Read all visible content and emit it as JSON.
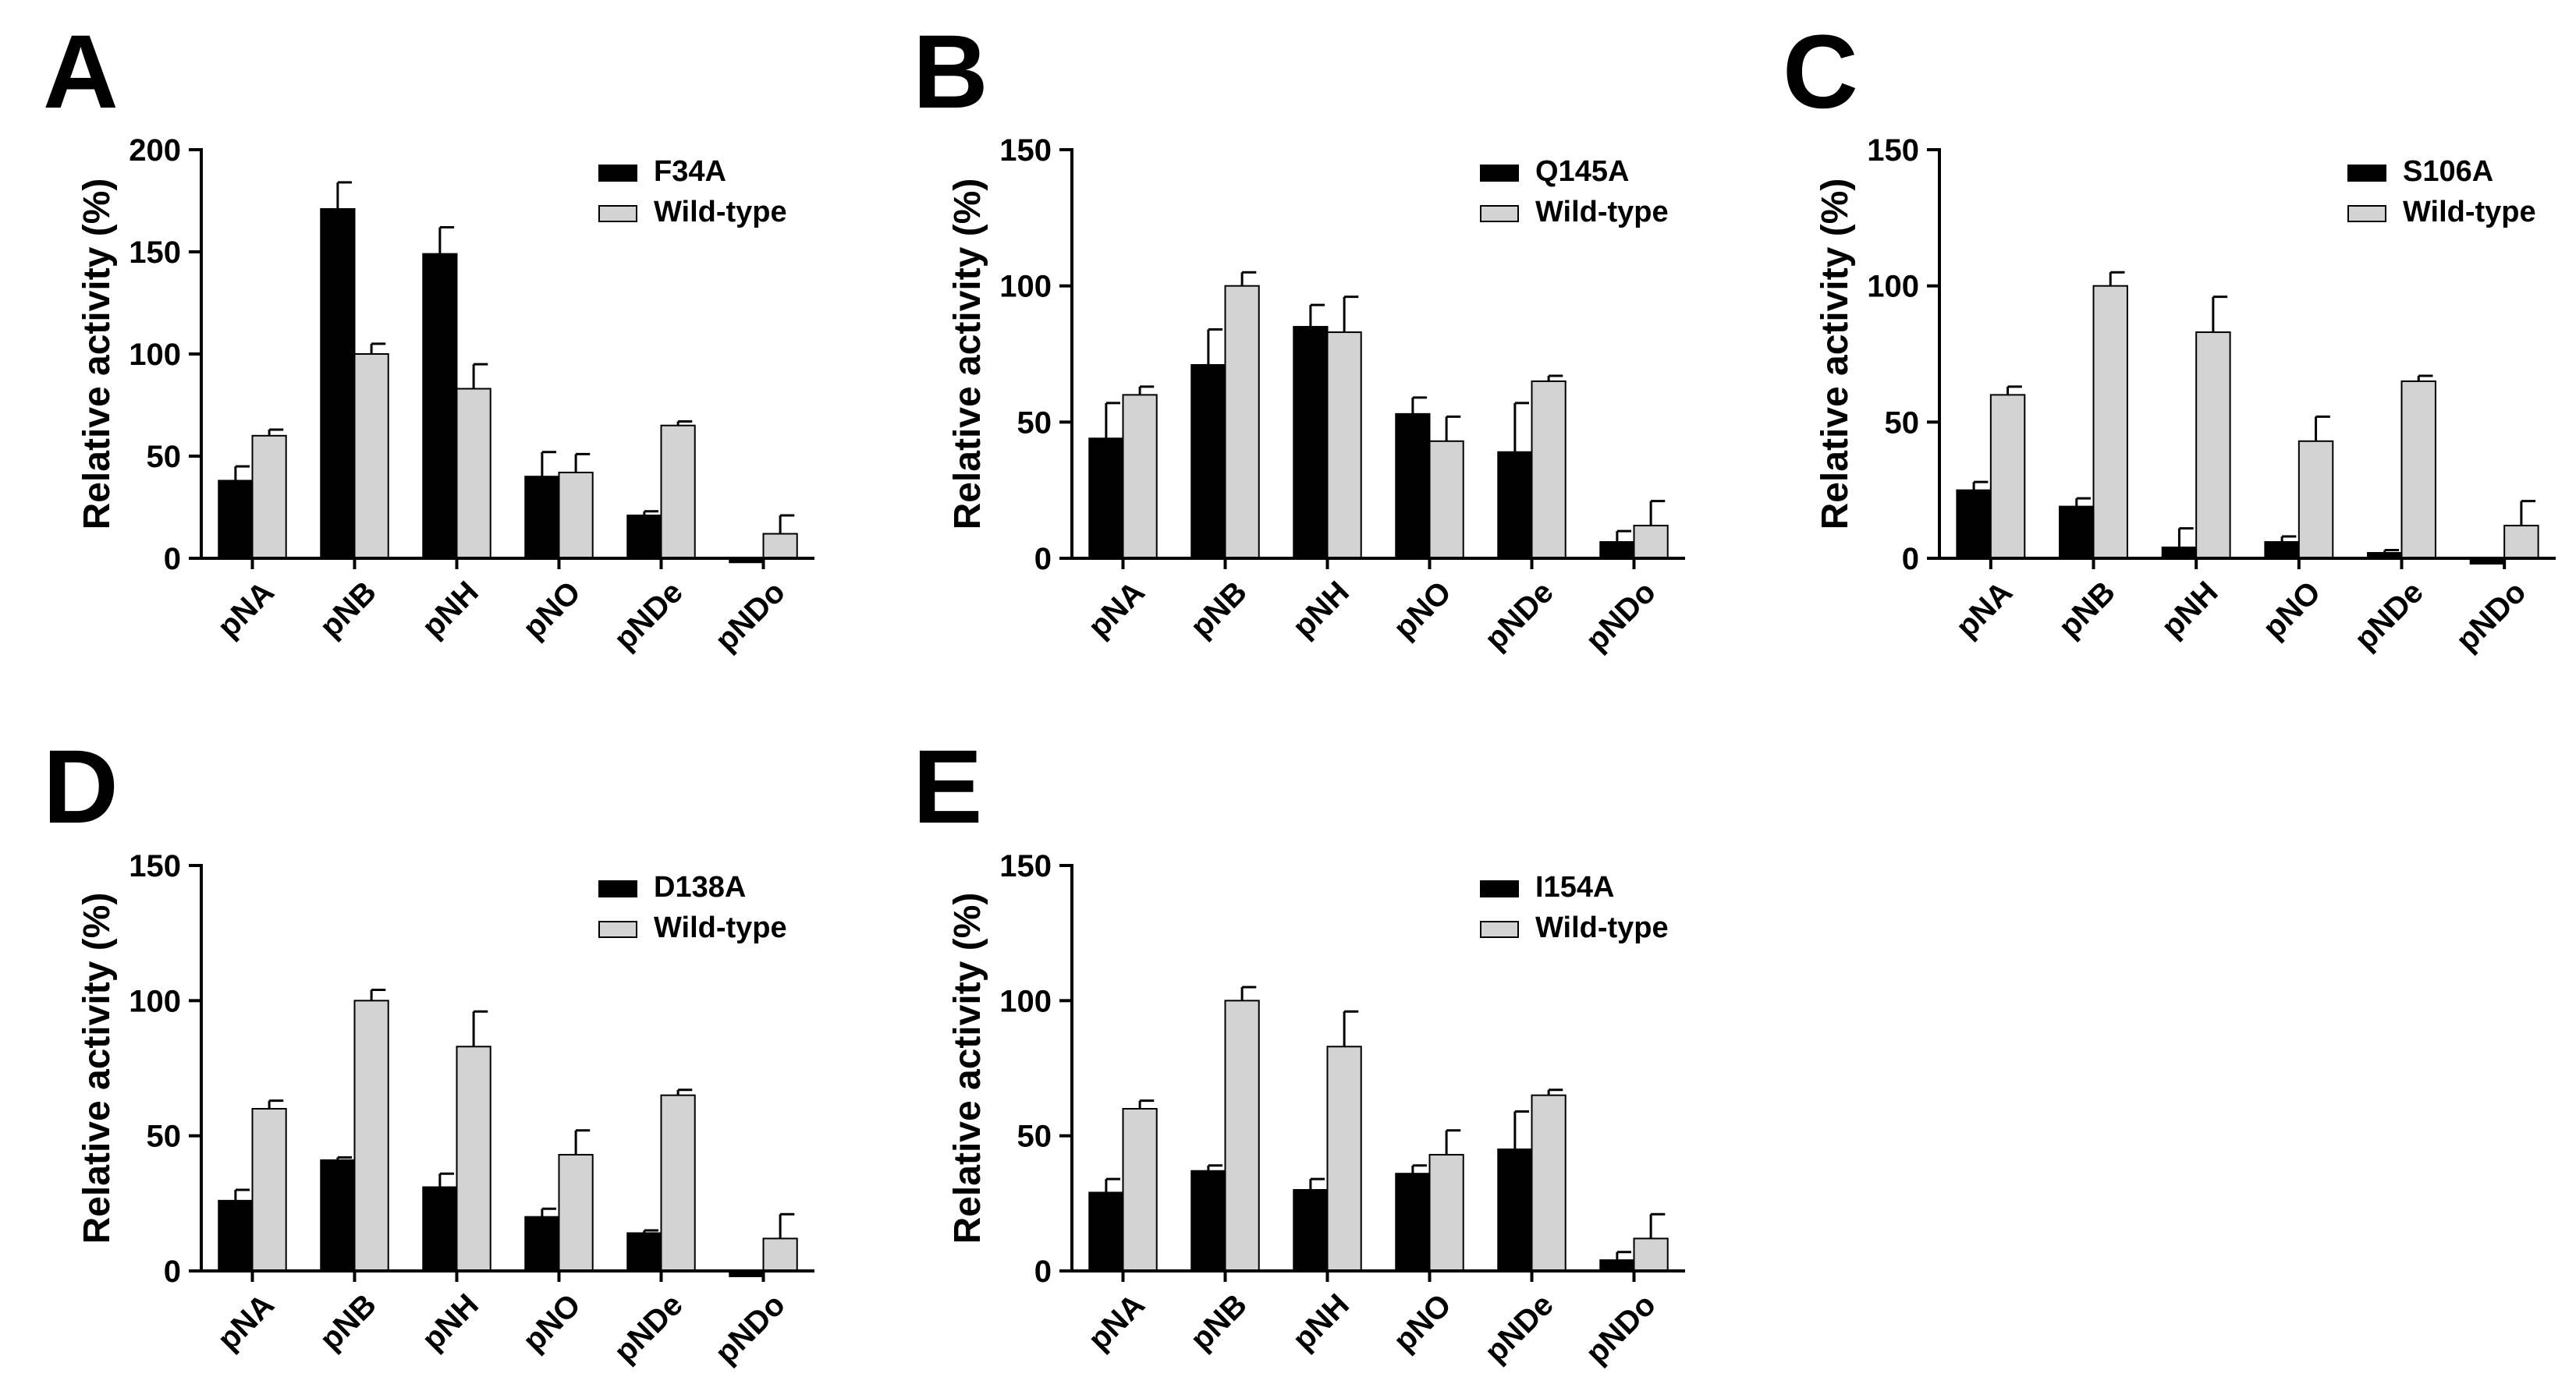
{
  "chart_data": [
    {
      "type": "bar",
      "panel": "A",
      "ylabel": "Relative activity (%)",
      "ylim": [
        0,
        200
      ],
      "yticks": [
        "0",
        "50",
        "100",
        "150",
        "200"
      ],
      "categories": [
        "pNA",
        "pNB",
        "pNH",
        "pNO",
        "pNDe",
        "pNDo"
      ],
      "legend_position": "top-right",
      "series": [
        {
          "name": "F34A",
          "color": "#000000",
          "values": [
            38,
            171,
            149,
            40,
            21,
            -2
          ],
          "errors": [
            7,
            13,
            13,
            12,
            2,
            0
          ]
        },
        {
          "name": "Wild-type",
          "color": "#d3d3d3",
          "values": [
            60,
            100,
            83,
            42,
            65,
            12
          ],
          "errors": [
            3,
            5,
            12,
            9,
            2,
            9
          ]
        }
      ]
    },
    {
      "type": "bar",
      "panel": "B",
      "ylabel": "Relative activity (%)",
      "ylim": [
        0,
        150
      ],
      "yticks": [
        "0",
        "50",
        "100",
        "150"
      ],
      "categories": [
        "pNA",
        "pNB",
        "pNH",
        "pNO",
        "pNDe",
        "pNDo"
      ],
      "legend_position": "top-right",
      "series": [
        {
          "name": "Q145A",
          "color": "#000000",
          "values": [
            44,
            71,
            85,
            53,
            39,
            6
          ],
          "errors": [
            13,
            13,
            8,
            6,
            18,
            4
          ]
        },
        {
          "name": "Wild-type",
          "color": "#d3d3d3",
          "values": [
            60,
            100,
            83,
            43,
            65,
            12
          ],
          "errors": [
            3,
            5,
            13,
            9,
            2,
            9
          ]
        }
      ]
    },
    {
      "type": "bar",
      "panel": "C",
      "ylabel": "Relative activity (%)",
      "ylim": [
        0,
        150
      ],
      "yticks": [
        "0",
        "50",
        "100",
        "150"
      ],
      "categories": [
        "pNA",
        "pNB",
        "pNH",
        "pNO",
        "pNDe",
        "pNDo"
      ],
      "legend_position": "top-right",
      "series": [
        {
          "name": "S106A",
          "color": "#000000",
          "values": [
            25,
            19,
            4,
            6,
            2,
            -2
          ],
          "errors": [
            3,
            3,
            7,
            2,
            1,
            0
          ]
        },
        {
          "name": "Wild-type",
          "color": "#d3d3d3",
          "values": [
            60,
            100,
            83,
            43,
            65,
            12
          ],
          "errors": [
            3,
            5,
            13,
            9,
            2,
            9
          ]
        }
      ]
    },
    {
      "type": "bar",
      "panel": "D",
      "ylabel": "Relative activity (%)",
      "ylim": [
        0,
        150
      ],
      "yticks": [
        "0",
        "50",
        "100",
        "150"
      ],
      "categories": [
        "pNA",
        "pNB",
        "pNH",
        "pNO",
        "pNDe",
        "pNDo"
      ],
      "legend_position": "top-right",
      "series": [
        {
          "name": "D138A",
          "color": "#000000",
          "values": [
            26,
            41,
            31,
            20,
            14,
            -2
          ],
          "errors": [
            4,
            1,
            5,
            3,
            1,
            0
          ]
        },
        {
          "name": "Wild-type",
          "color": "#d3d3d3",
          "values": [
            60,
            100,
            83,
            43,
            65,
            12
          ],
          "errors": [
            3,
            4,
            13,
            9,
            2,
            9
          ]
        }
      ]
    },
    {
      "type": "bar",
      "panel": "E",
      "ylabel": "Relative activity (%)",
      "ylim": [
        0,
        150
      ],
      "yticks": [
        "0",
        "50",
        "100",
        "150"
      ],
      "categories": [
        "pNA",
        "pNB",
        "pNH",
        "pNO",
        "pNDe",
        "pNDo"
      ],
      "legend_position": "top-right",
      "series": [
        {
          "name": "I154A",
          "color": "#000000",
          "values": [
            29,
            37,
            30,
            36,
            45,
            4
          ],
          "errors": [
            5,
            2,
            4,
            3,
            14,
            3
          ]
        },
        {
          "name": "Wild-type",
          "color": "#d3d3d3",
          "values": [
            60,
            100,
            83,
            43,
            65,
            12
          ],
          "errors": [
            3,
            5,
            13,
            9,
            2,
            9
          ]
        }
      ]
    }
  ]
}
